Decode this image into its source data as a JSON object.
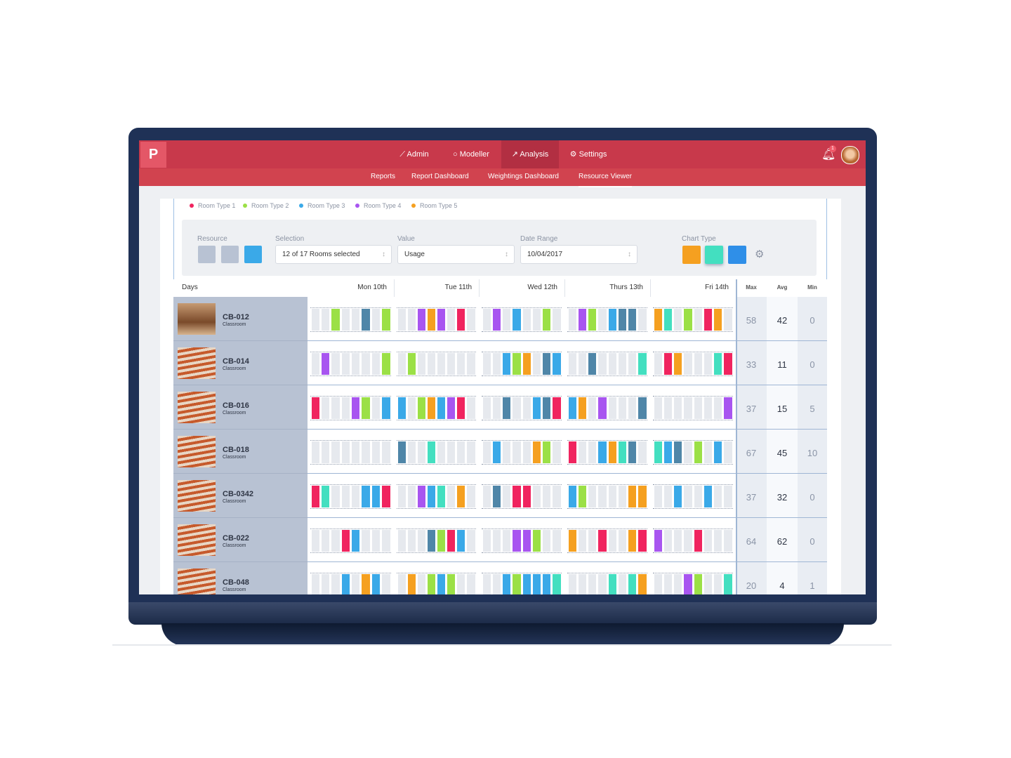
{
  "nav": {
    "items": [
      "Admin",
      "Modeller",
      "Analysis",
      "Settings"
    ],
    "badge": "1"
  },
  "subnav": [
    "Reports",
    "Report Dashboard",
    "Weightings Dashboard",
    "Resource Viewer"
  ],
  "legend": [
    {
      "label": "Room Type 1",
      "color": "#f0245f"
    },
    {
      "label": "Room Type 2",
      "color": "#9be046"
    },
    {
      "label": "Room Type 3",
      "color": "#3aa9e8"
    },
    {
      "label": "Room Type 4",
      "color": "#a855f0"
    },
    {
      "label": "Room Type 5",
      "color": "#f5a020"
    }
  ],
  "filters": {
    "resource_label": "Resource",
    "selection_label": "Selection",
    "selection": "12 of 17 Rooms selected",
    "value_label": "Value",
    "value": "Usage",
    "date_range_label": "Date Range",
    "date_range": "10/04/2017",
    "chart_type_label": "Chart Type"
  },
  "table": {
    "days_label": "Days",
    "days": [
      "Mon 10th",
      "Tue 11th",
      "Wed 12th",
      "Thurs 13th",
      "Fri 14th"
    ],
    "stats": [
      "Max",
      "Avg",
      "Min"
    ],
    "rows": [
      {
        "name": "CB-012",
        "type": "Classroom",
        "max": 58,
        "avg": 42,
        "min": 0
      },
      {
        "name": "CB-014",
        "type": "Classroom",
        "max": 33,
        "avg": 11,
        "min": 0
      },
      {
        "name": "CB-016",
        "type": "Classroom",
        "max": 37,
        "avg": 15,
        "min": 5
      },
      {
        "name": "CB-018",
        "type": "Classroom",
        "max": 67,
        "avg": 45,
        "min": 10
      },
      {
        "name": "CB-0342",
        "type": "Classroom",
        "max": 37,
        "avg": 32,
        "min": 0
      },
      {
        "name": "CB-022",
        "type": "Classroom",
        "max": 64,
        "avg": 62,
        "min": 0
      },
      {
        "name": "CB-048",
        "type": "Classroom",
        "max": 20,
        "avg": 4,
        "min": 1
      }
    ]
  }
}
